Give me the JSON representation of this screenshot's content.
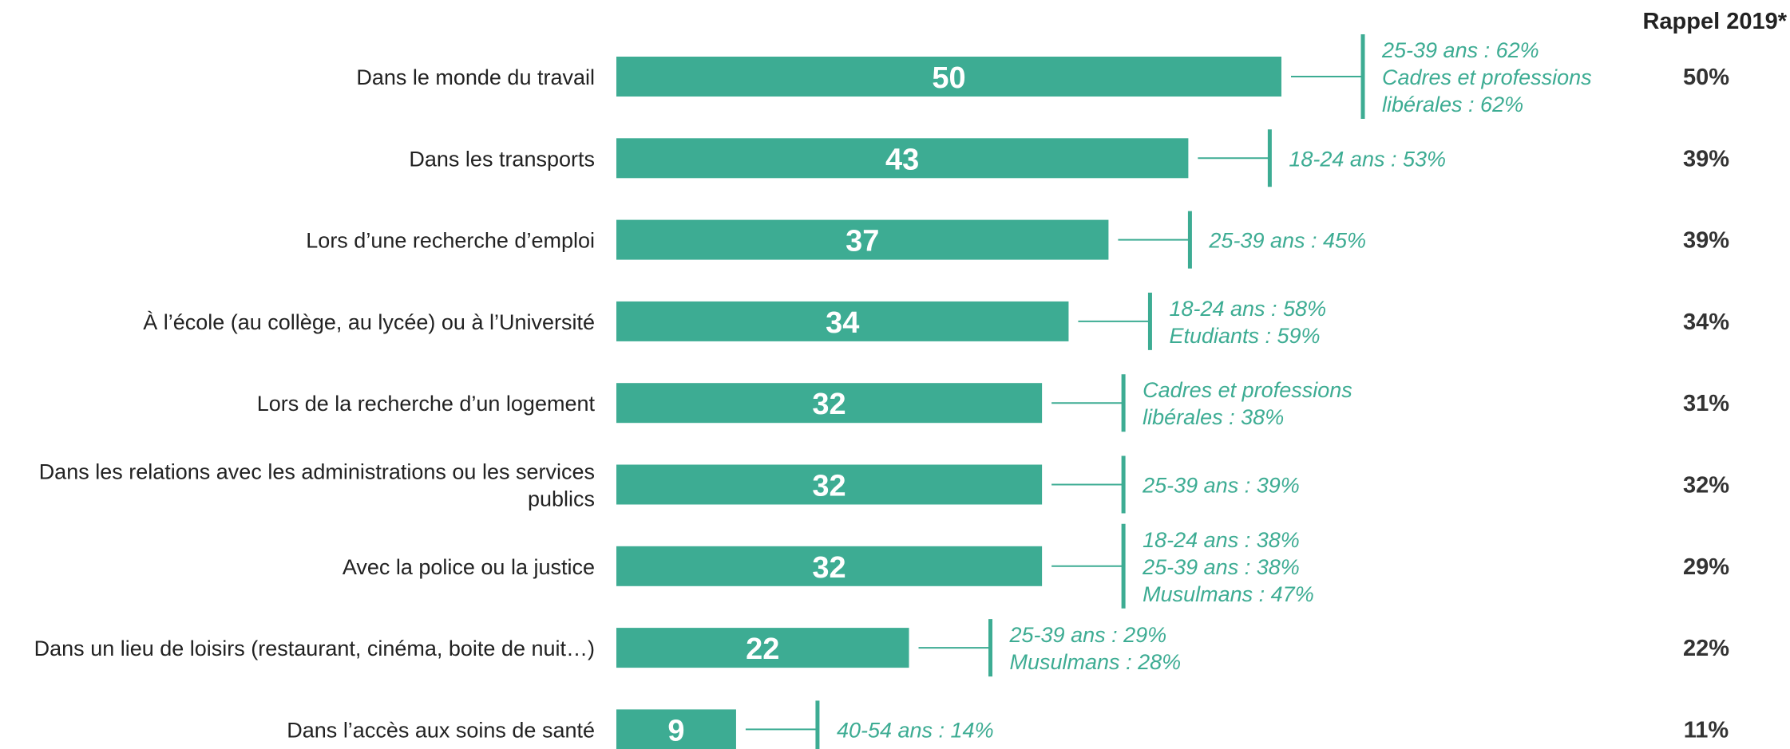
{
  "chart_data": {
    "type": "bar",
    "orientation": "horizontal",
    "bar_color": "#3dac93",
    "note_color": "#3dac93",
    "recall_title": "Rappel 2019*",
    "xlim": [
      0,
      50
    ],
    "categories": [
      [
        "Dans le monde du travail"
      ],
      [
        "Dans les transports"
      ],
      [
        "Lors d’une recherche d’emploi"
      ],
      [
        "À l’école (au collège, au lycée) ou à l’Université"
      ],
      [
        "Lors de la recherche d’un logement"
      ],
      [
        "Dans les relations avec les administrations ou les services",
        "publics"
      ],
      [
        "Avec la police ou la justice"
      ],
      [
        "Dans un lieu de loisirs (restaurant, cinéma, boite de nuit…)"
      ],
      [
        "Dans l’accès aux soins de santé"
      ]
    ],
    "values": [
      50,
      43,
      37,
      34,
      32,
      32,
      32,
      22,
      9
    ],
    "annotations": [
      [
        "25-39 ans : 62%",
        "Cadres et professions",
        "libérales : 62%"
      ],
      [
        "18-24 ans : 53%"
      ],
      [
        "25-39 ans : 45%"
      ],
      [
        "18-24 ans : 58%",
        "Etudiants : 59%"
      ],
      [
        "Cadres et professions",
        "libérales : 38%"
      ],
      [
        "25-39 ans : 39%"
      ],
      [
        "18-24 ans : 38%",
        "25-39 ans : 38%",
        "Musulmans : 47%"
      ],
      [
        "25-39 ans : 29%",
        "Musulmans : 28%"
      ],
      [
        "40-54 ans : 14%"
      ]
    ],
    "recall_2019": [
      "50%",
      "39%",
      "39%",
      "34%",
      "31%",
      "32%",
      "29%",
      "22%",
      "11%"
    ]
  }
}
